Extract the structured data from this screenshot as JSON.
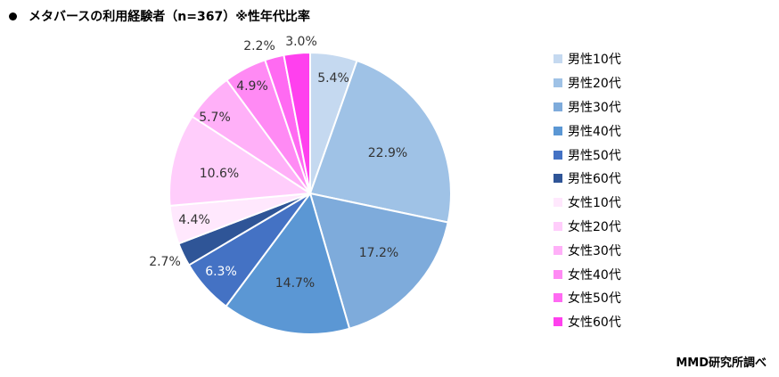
{
  "title": "メタバースの利用経験者（n=367）※性年代比率",
  "source": "MMD研究所調べ",
  "chart_data": {
    "type": "pie",
    "title": "メタバースの利用経験者（n=367）※性年代比率",
    "start_angle_deg": 0,
    "direction": "clockwise",
    "legend_position": "right",
    "unit": "%",
    "slices": [
      {
        "label": "男性10代",
        "value": 5.4,
        "color": "#c5d9f0",
        "label_text_color": "#333333"
      },
      {
        "label": "男性20代",
        "value": 22.9,
        "color": "#9fc2e6",
        "label_text_color": "#333333"
      },
      {
        "label": "男性30代",
        "value": 17.2,
        "color": "#7eabdb",
        "label_text_color": "#333333"
      },
      {
        "label": "男性40代",
        "value": 14.7,
        "color": "#5b97d4",
        "label_text_color": "#333333"
      },
      {
        "label": "男性50代",
        "value": 6.3,
        "color": "#4472c4",
        "label_text_color": "#ffffff"
      },
      {
        "label": "男性60代",
        "value": 2.7,
        "color": "#2f5597",
        "label_text_color": "#333333"
      },
      {
        "label": "女性10代",
        "value": 4.4,
        "color": "#ffe8fd",
        "label_text_color": "#333333"
      },
      {
        "label": "女性20代",
        "value": 10.6,
        "color": "#ffcdfb",
        "label_text_color": "#333333"
      },
      {
        "label": "女性30代",
        "value": 5.7,
        "color": "#ffb0f8",
        "label_text_color": "#333333"
      },
      {
        "label": "女性40代",
        "value": 4.9,
        "color": "#ff8af4",
        "label_text_color": "#333333"
      },
      {
        "label": "女性50代",
        "value": 2.2,
        "color": "#ff6af2",
        "label_text_color": "#333333"
      },
      {
        "label": "女性60代",
        "value": 3.0,
        "color": "#ff40ee",
        "label_text_color": "#333333"
      }
    ]
  }
}
